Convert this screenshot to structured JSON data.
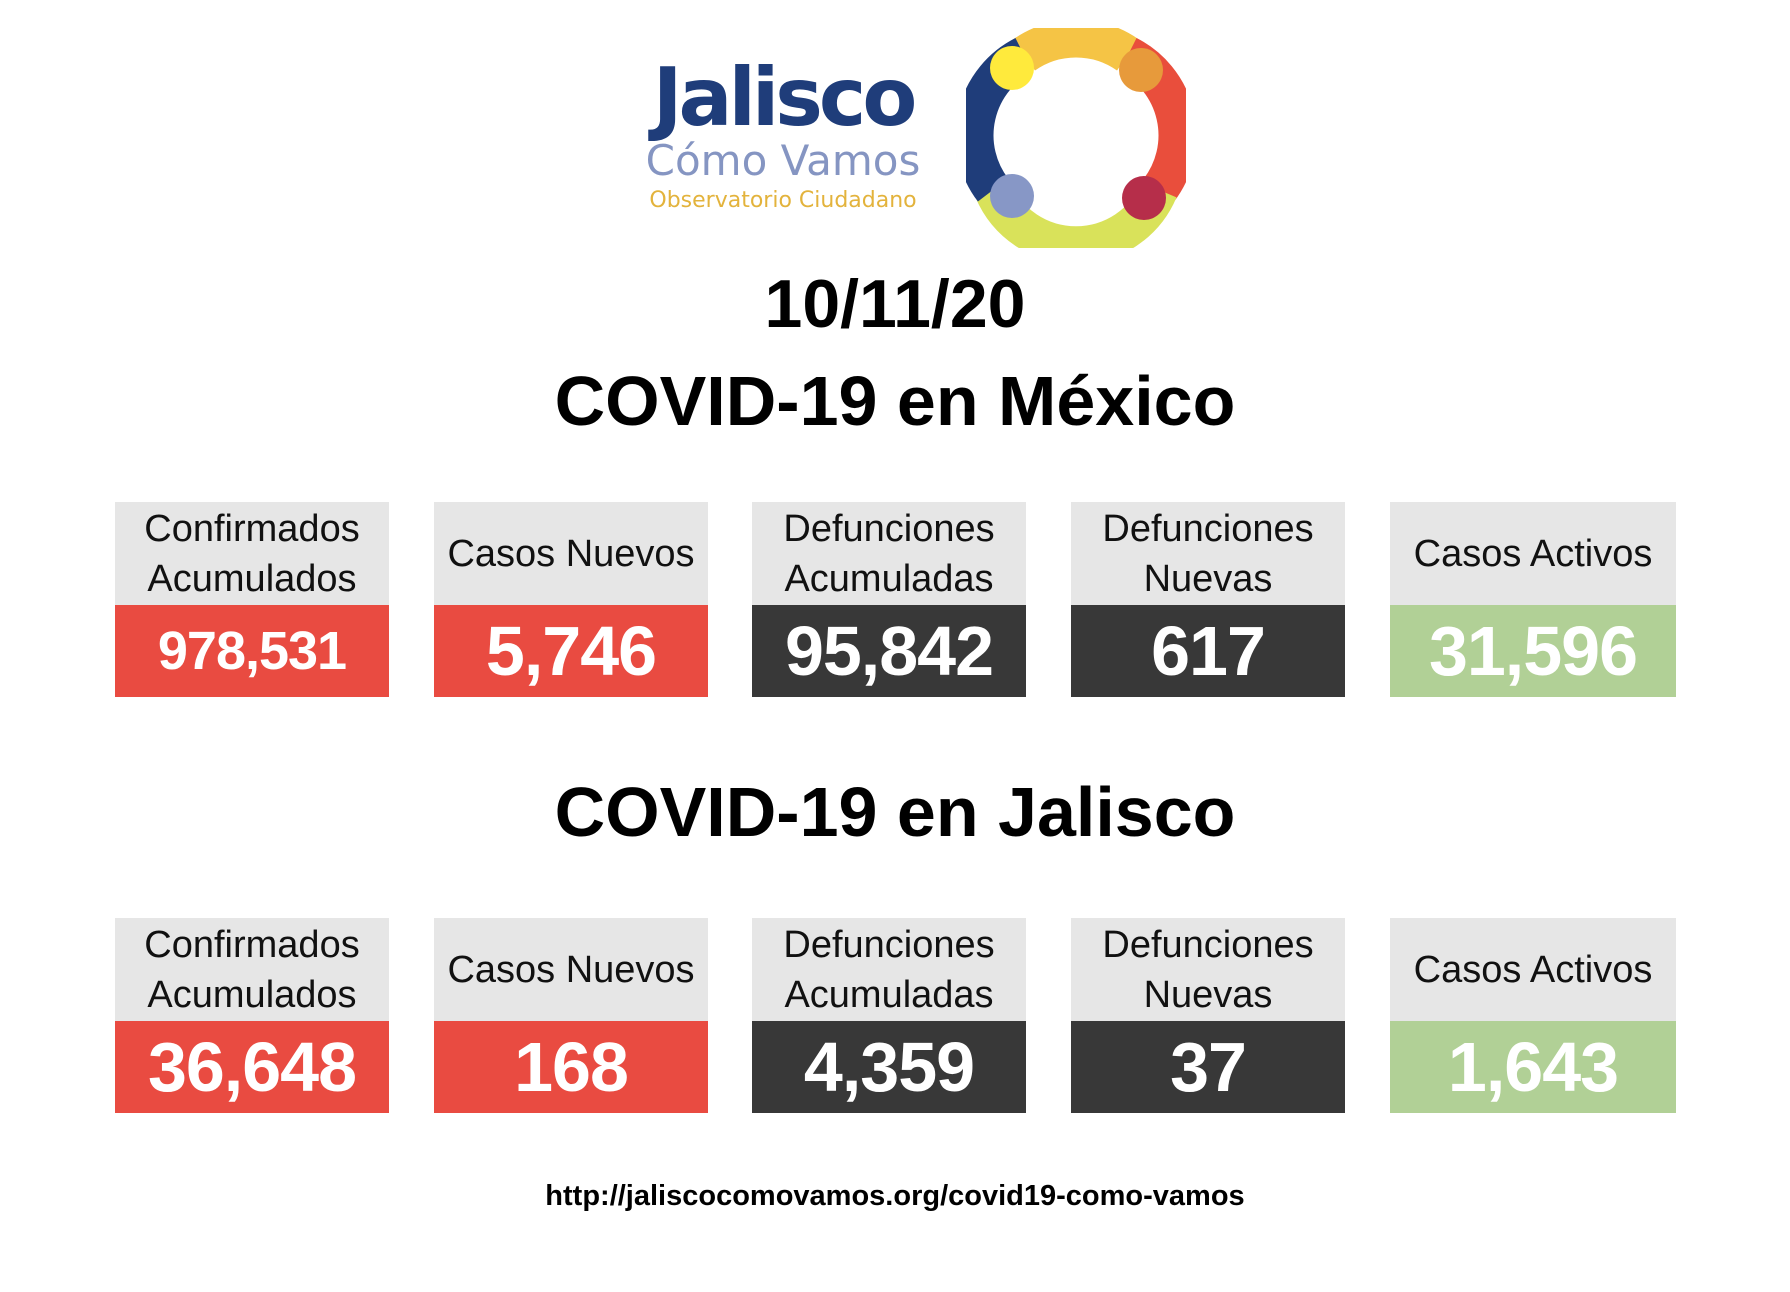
{
  "logo": {
    "name": "Jalisco",
    "subtitle": "Cómo Vamos",
    "tagline": "Observatorio Ciudadano",
    "ring_colors": [
      "#f5c445",
      "#e94e3c",
      "#d9e25a",
      "#1f3d7a",
      "#ffea3c",
      "#e79a3b",
      "#b62e4a",
      "#8797c6"
    ]
  },
  "date": "10/11/20",
  "mexico": {
    "title": "COVID-19 en México",
    "cards": [
      {
        "label": "Confirmados\nAcumulados",
        "value": "978,531",
        "color": "#e94b41"
      },
      {
        "label": "Casos Nuevos",
        "value": "5,746",
        "color": "#e94b41"
      },
      {
        "label": "Defunciones\nAcumuladas",
        "value": "95,842",
        "color": "#383838"
      },
      {
        "label": "Defunciones\nNuevas",
        "value": "617",
        "color": "#383838"
      },
      {
        "label": "Casos Activos",
        "value": "31,596",
        "color": "#b1d096"
      }
    ]
  },
  "jalisco": {
    "title": "COVID-19 en Jalisco",
    "cards": [
      {
        "label": "Confirmados\nAcumulados",
        "value": "36,648",
        "color": "#e94b41"
      },
      {
        "label": "Casos Nuevos",
        "value": "168",
        "color": "#e94b41"
      },
      {
        "label": "Defunciones\nAcumuladas",
        "value": "4,359",
        "color": "#383838"
      },
      {
        "label": "Defunciones\nNuevas",
        "value": "37",
        "color": "#383838"
      },
      {
        "label": "Casos Activos",
        "value": "1,643",
        "color": "#b1d096"
      }
    ]
  },
  "footer": {
    "url": "http://jaliscocomovamos.org/covid19-como-vamos"
  }
}
